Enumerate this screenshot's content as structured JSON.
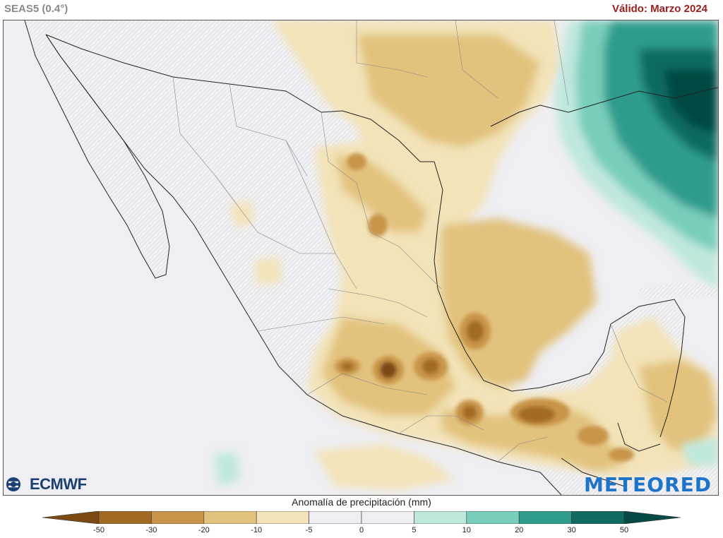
{
  "header": {
    "model": "SEAS5 (0.4°)",
    "valid": "Válido: Marzo 2024"
  },
  "legend": {
    "title": "Anomalía de precipitación (mm)",
    "ticks": [
      "-50",
      "-30",
      "-20",
      "-10",
      "-5",
      "0",
      "5",
      "10",
      "20",
      "30",
      "50"
    ],
    "colors": [
      "#7a4a12",
      "#a36a25",
      "#c8954a",
      "#e2c27d",
      "#f3e3b8",
      "#eeeef3",
      "#eeeef3",
      "#bfe8dd",
      "#79cdbb",
      "#2f9c8c",
      "#0f6a60",
      "#064a43"
    ]
  },
  "logos": {
    "left": "ECMWF",
    "right": "METEORED"
  },
  "icons": {
    "ecmwf": "ecmwf-logo-icon"
  }
}
